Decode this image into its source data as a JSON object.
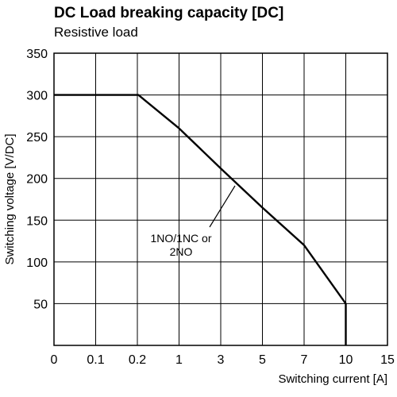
{
  "chart_data": {
    "type": "line",
    "title": "DC Load breaking capacity [DC]",
    "subtitle": "Resistive load",
    "xlabel": "Switching current [A]",
    "ylabel": "Switching voltage [V/DC]",
    "x_tick_labels": [
      "0",
      "0.1",
      "0.2",
      "1",
      "3",
      "5",
      "7",
      "10",
      "15"
    ],
    "y_tick_labels": [
      "50",
      "100",
      "150",
      "200",
      "250",
      "300",
      "350"
    ],
    "y_ticks": [
      50,
      100,
      150,
      200,
      250,
      300,
      350
    ],
    "ylim": [
      0,
      350
    ],
    "grid": true,
    "series": [
      {
        "name": "",
        "x": [
          0,
          0.2,
          0.22,
          1,
          3,
          5,
          7,
          10,
          10
        ],
        "y": [
          300,
          300,
          300,
          260,
          212,
          165,
          120,
          50,
          0
        ]
      }
    ],
    "annotation": {
      "line1": "1NO/1NC or",
      "line2": "2NO"
    }
  }
}
